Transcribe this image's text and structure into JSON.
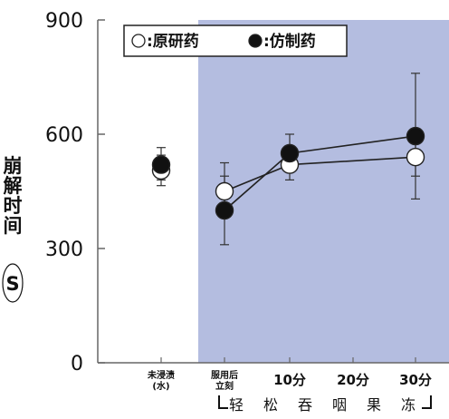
{
  "chart_data": {
    "type": "line",
    "ylabel_chars": [
      "崩",
      "解",
      "时",
      "间"
    ],
    "yunit": "S",
    "ylim": [
      0,
      900
    ],
    "yticks": [
      {
        "value": 0,
        "label": "0"
      },
      {
        "value": 300,
        "label": "300"
      },
      {
        "value": 600,
        "label": "600"
      },
      {
        "value": 900,
        "label": "900"
      }
    ],
    "categories": [
      {
        "lines": [
          "未浸渍",
          "(水)"
        ],
        "style": "small"
      },
      {
        "lines": [
          "服用后",
          "立刻"
        ],
        "style": "small"
      },
      {
        "lines": [
          "10分"
        ],
        "style": "normal"
      },
      {
        "lines": [
          "20分"
        ],
        "style": "normal"
      },
      {
        "lines": [
          "30分"
        ],
        "style": "normal"
      }
    ],
    "bracket_label": [
      "轻",
      "松",
      "吞",
      "咽",
      "果",
      "冻"
    ],
    "shaded_region": {
      "from_category": 1,
      "to_category": 4,
      "color": "#b4bde0"
    },
    "legend": [
      {
        "symbol": "○",
        "label": "原研药",
        "fill": "#ffffff"
      },
      {
        "symbol": "●",
        "label": "仿制药",
        "fill": "#111111"
      }
    ],
    "series": [
      {
        "name": "原研药",
        "marker_fill": "#ffffff",
        "points": [
          {
            "category": 0,
            "value": 505,
            "err_low": 465,
            "err_high": 545
          },
          {
            "category": 1,
            "value": 450,
            "err_low": 405,
            "err_high": 490
          },
          {
            "category": 2,
            "value": 520,
            "err_low": 480,
            "err_high": 560
          },
          {
            "category": 4,
            "value": 540,
            "err_low": 490,
            "err_high": 590
          }
        ]
      },
      {
        "name": "仿制药",
        "marker_fill": "#111111",
        "points": [
          {
            "category": 0,
            "value": 520,
            "err_low": 480,
            "err_high": 565
          },
          {
            "category": 1,
            "value": 400,
            "err_low": 310,
            "err_high": 525
          },
          {
            "category": 2,
            "value": 550,
            "err_low": 515,
            "err_high": 600
          },
          {
            "category": 4,
            "value": 595,
            "err_low": 430,
            "err_high": 760
          }
        ]
      }
    ]
  }
}
